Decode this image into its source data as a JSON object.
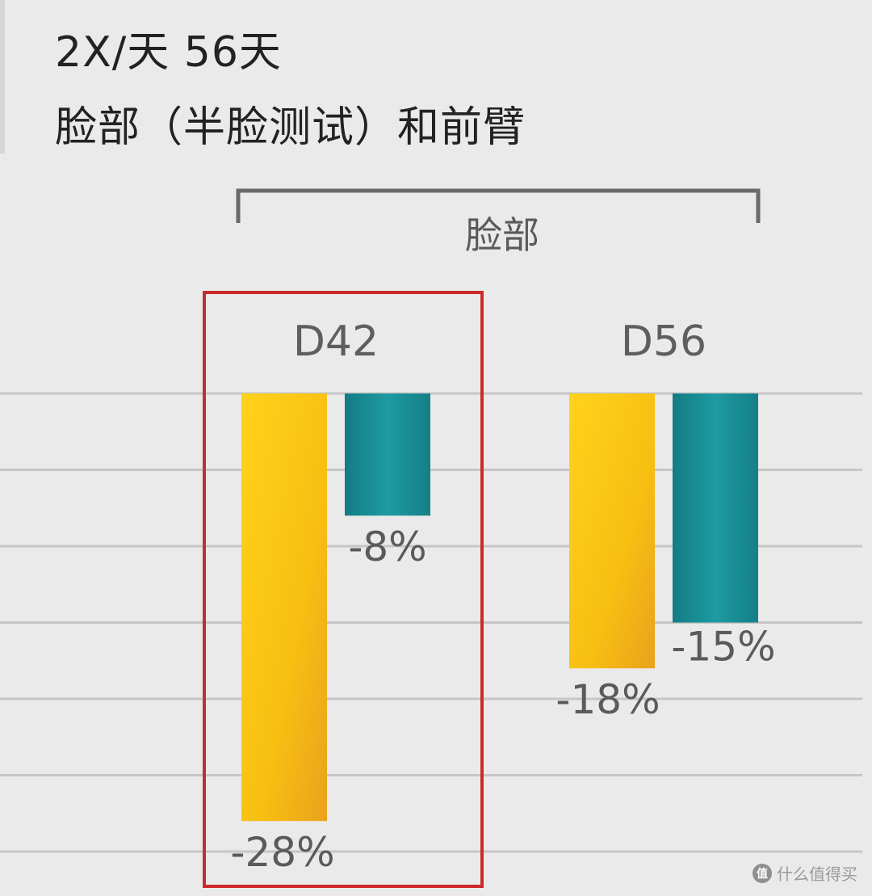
{
  "title_line1": "2X/天 56天",
  "title_line2": "脸部（半脸测试）和前臂",
  "watermark": "什么值得买",
  "chart_data": {
    "type": "bar",
    "group_label": "脸部",
    "categories": [
      "D42",
      "D56"
    ],
    "series": [
      {
        "values": [
          -28,
          -18
        ],
        "labels": [
          "-28%",
          "-18%"
        ],
        "color": "#f5b712"
      },
      {
        "values": [
          -8,
          -15
        ],
        "labels": [
          "-8%",
          "-15%"
        ],
        "color": "#1a939a"
      }
    ],
    "ylim": [
      -30,
      0
    ],
    "grid": true,
    "highlight_category": "D42",
    "highlight_color": "#cc2a2a"
  }
}
